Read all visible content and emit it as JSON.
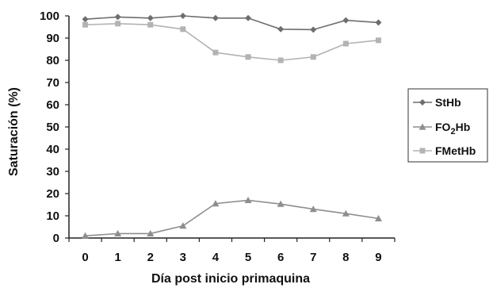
{
  "chart_data": {
    "type": "line",
    "title": "",
    "xlabel": "Día post inicio primaquina",
    "ylabel": "Saturación (%)",
    "categories": [
      "0",
      "1",
      "2",
      "3",
      "4",
      "5",
      "6",
      "7",
      "8",
      "9"
    ],
    "y_ticks": [
      "0",
      "10",
      "20",
      "30",
      "40",
      "50",
      "60",
      "70",
      "80",
      "90",
      "100"
    ],
    "ylim": [
      0,
      100
    ],
    "grid": false,
    "legend_position": "right",
    "series": [
      {
        "name": "StHb",
        "name_main": "StHb",
        "name_sub": "",
        "name_tail": "",
        "marker": "diamond",
        "color": "#6e6e6e",
        "values": [
          98.5,
          99.5,
          99,
          100,
          99,
          99,
          94,
          93.8,
          98,
          97
        ]
      },
      {
        "name": "FO2Hb",
        "name_main": "FO",
        "name_sub": "2",
        "name_tail": "Hb",
        "marker": "triangle",
        "color": "#8e8e8e",
        "values": [
          1,
          2,
          2,
          5.5,
          15.5,
          17,
          15.3,
          13,
          11,
          8.8
        ]
      },
      {
        "name": "FMetHb",
        "name_main": "FMetHb",
        "name_sub": "",
        "name_tail": "",
        "marker": "square",
        "color": "#b3b3b3",
        "values": [
          96,
          96.5,
          96,
          94,
          83.5,
          81.5,
          80,
          81.5,
          87.5,
          89
        ]
      }
    ]
  }
}
